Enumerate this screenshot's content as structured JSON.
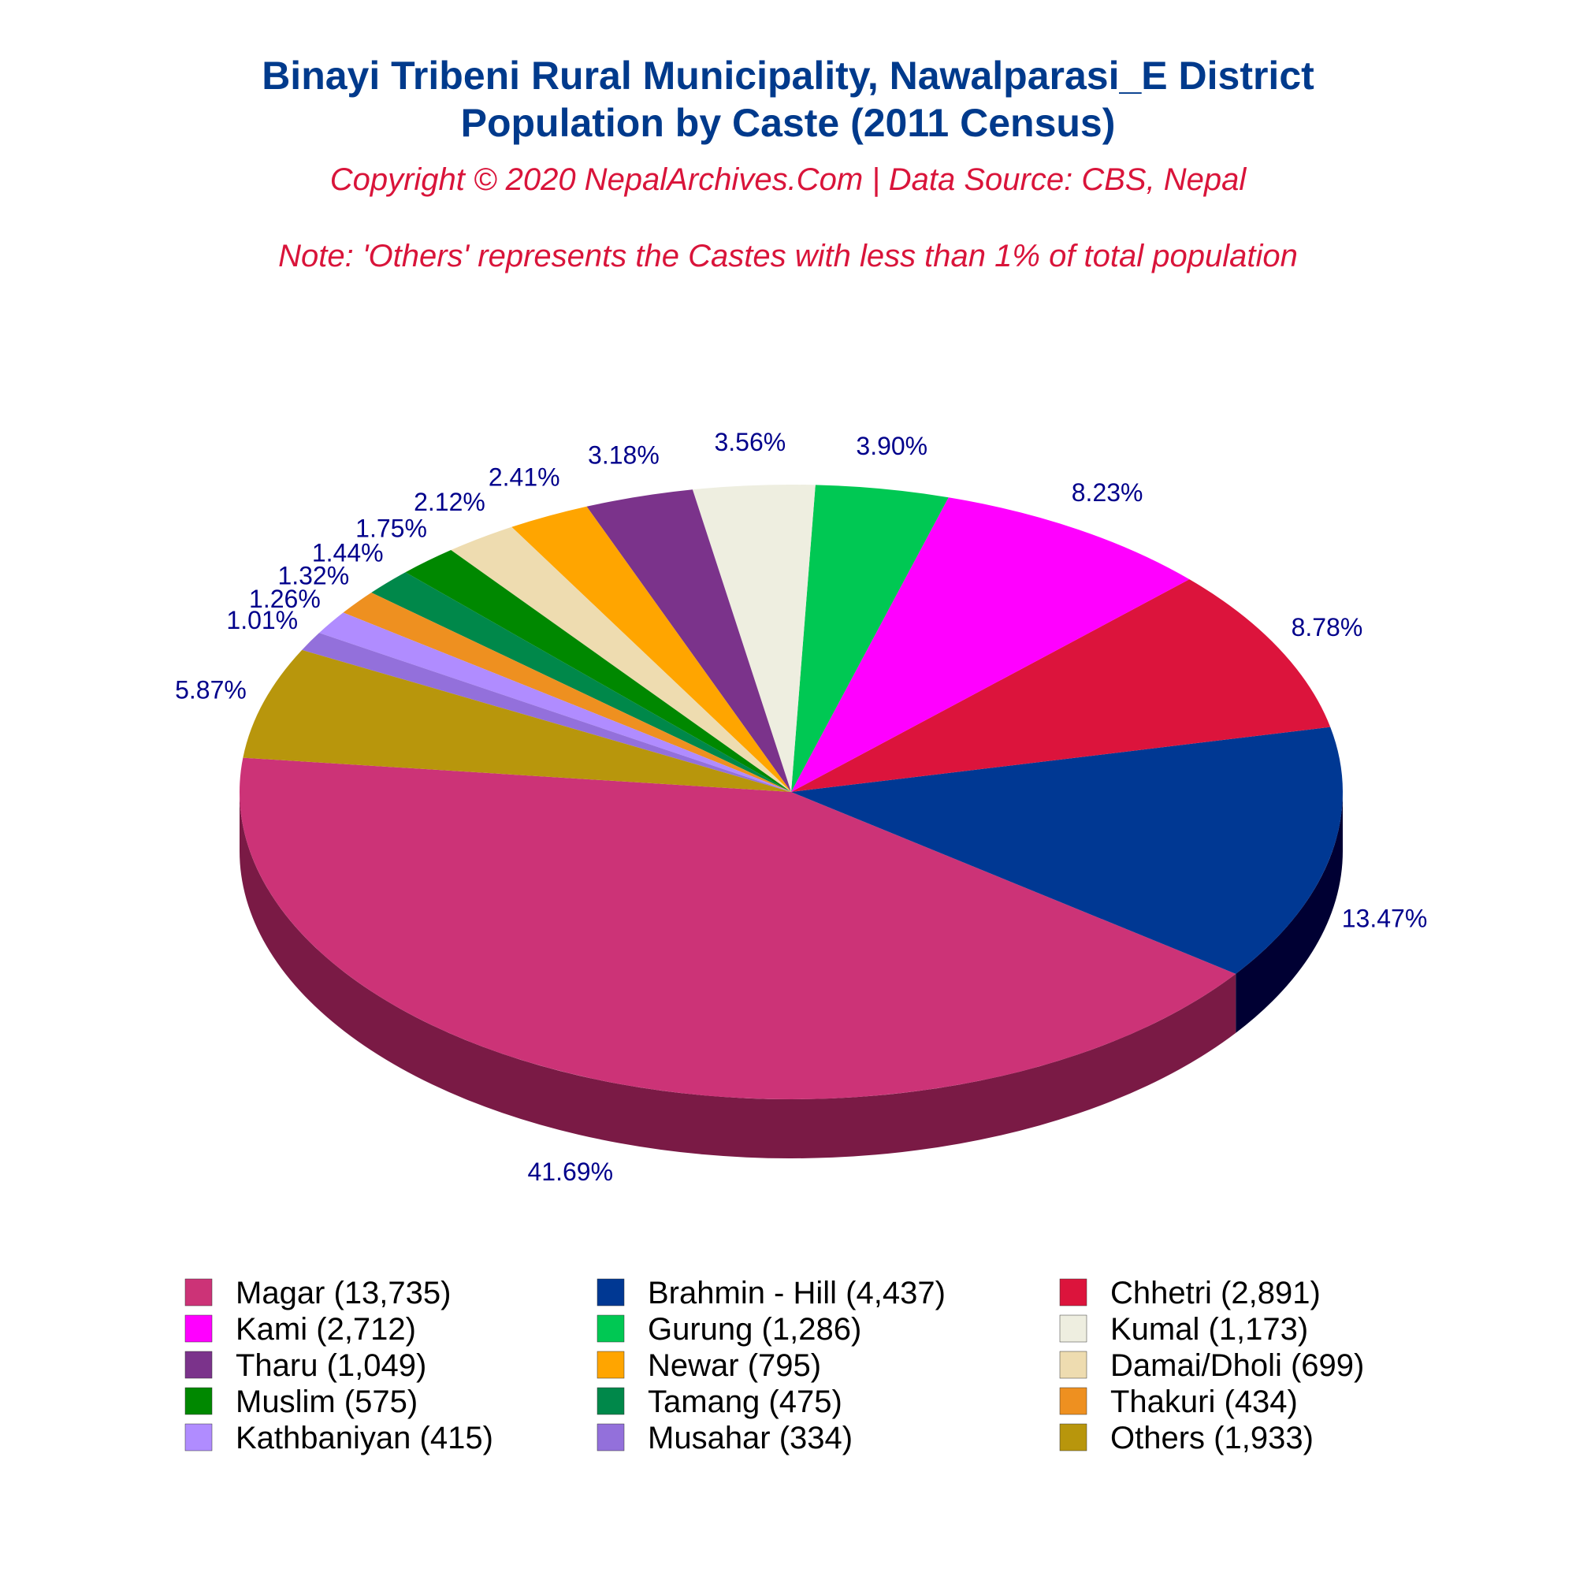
{
  "chart_data": {
    "type": "pie",
    "title_line1": "Binayi Tribeni Rural Municipality, Nawalparasi_E District",
    "title_line2": "Population by Caste (2011 Census)",
    "copyright": "Copyright © 2020 NepalArchives.Com | Data Source: CBS, Nepal",
    "note": "Note: 'Others' represents the Castes with less than 1% of total population",
    "legend_position": "bottom",
    "slices": [
      {
        "name": "Magar",
        "value": 13735,
        "percent": 41.69,
        "label": "41.69%",
        "legend": "Magar (13,735)",
        "color": "#cc3377",
        "dark": "#7a1a45"
      },
      {
        "name": "Brahmin - Hill",
        "value": 4437,
        "percent": 13.47,
        "label": "13.47%",
        "legend": "Brahmin - Hill (4,437)",
        "color": "#003893",
        "dark": "#000033"
      },
      {
        "name": "Chhetri",
        "value": 2891,
        "percent": 8.78,
        "label": "8.78%",
        "legend": "Chhetri (2,891)",
        "color": "#dc143c",
        "dark": "#800000"
      },
      {
        "name": "Kami",
        "value": 2712,
        "percent": 8.23,
        "label": "8.23%",
        "legend": "Kami (2,712)",
        "color": "#ff00ff",
        "dark": "#a000a8"
      },
      {
        "name": "Gurung",
        "value": 1286,
        "percent": 3.9,
        "label": "3.90%",
        "legend": "Gurung (1,286)",
        "color": "#00c853",
        "dark": "#006400"
      },
      {
        "name": "Kumal",
        "value": 1173,
        "percent": 3.56,
        "label": "3.56%",
        "legend": "Kumal (1,173)",
        "color": "#eeeee0",
        "dark": "#96968a"
      },
      {
        "name": "Tharu",
        "value": 1049,
        "percent": 3.18,
        "label": "3.18%",
        "legend": "Tharu (1,049)",
        "color": "#7b338b",
        "dark": "#220022"
      },
      {
        "name": "Newar",
        "value": 795,
        "percent": 2.41,
        "label": "2.41%",
        "legend": "Newar (795)",
        "color": "#ffa500",
        "dark": "#a04a00"
      },
      {
        "name": "Damai/Dholi",
        "value": 699,
        "percent": 2.12,
        "label": "2.12%",
        "legend": "Damai/Dholi (699)",
        "color": "#eedcb0",
        "dark": "#948a6e"
      },
      {
        "name": "Muslim",
        "value": 575,
        "percent": 1.75,
        "label": "1.75%",
        "legend": "Muslim (575)",
        "color": "#008800",
        "dark": "#003300"
      },
      {
        "name": "Tamang",
        "value": 475,
        "percent": 1.44,
        "label": "1.44%",
        "legend": "Tamang (475)",
        "color": "#00884a",
        "dark": "#003a20"
      },
      {
        "name": "Thakuri",
        "value": 434,
        "percent": 1.32,
        "label": "1.32%",
        "legend": "Thakuri (434)",
        "color": "#ee9020",
        "dark": "#8a5010"
      },
      {
        "name": "Kathbaniyan",
        "value": 415,
        "percent": 1.26,
        "label": "1.26%",
        "legend": "Kathbaniyan (415)",
        "color": "#b08cff",
        "dark": "#6a5099"
      },
      {
        "name": "Musahar",
        "value": 334,
        "percent": 1.01,
        "label": "1.01%",
        "legend": "Musahar (334)",
        "color": "#9370db",
        "dark": "#553f80"
      },
      {
        "name": "Others",
        "value": 1933,
        "percent": 5.87,
        "label": "5.87%",
        "legend": "Others (1,933)",
        "color": "#b8960c",
        "dark": "#6e5a07"
      }
    ]
  }
}
